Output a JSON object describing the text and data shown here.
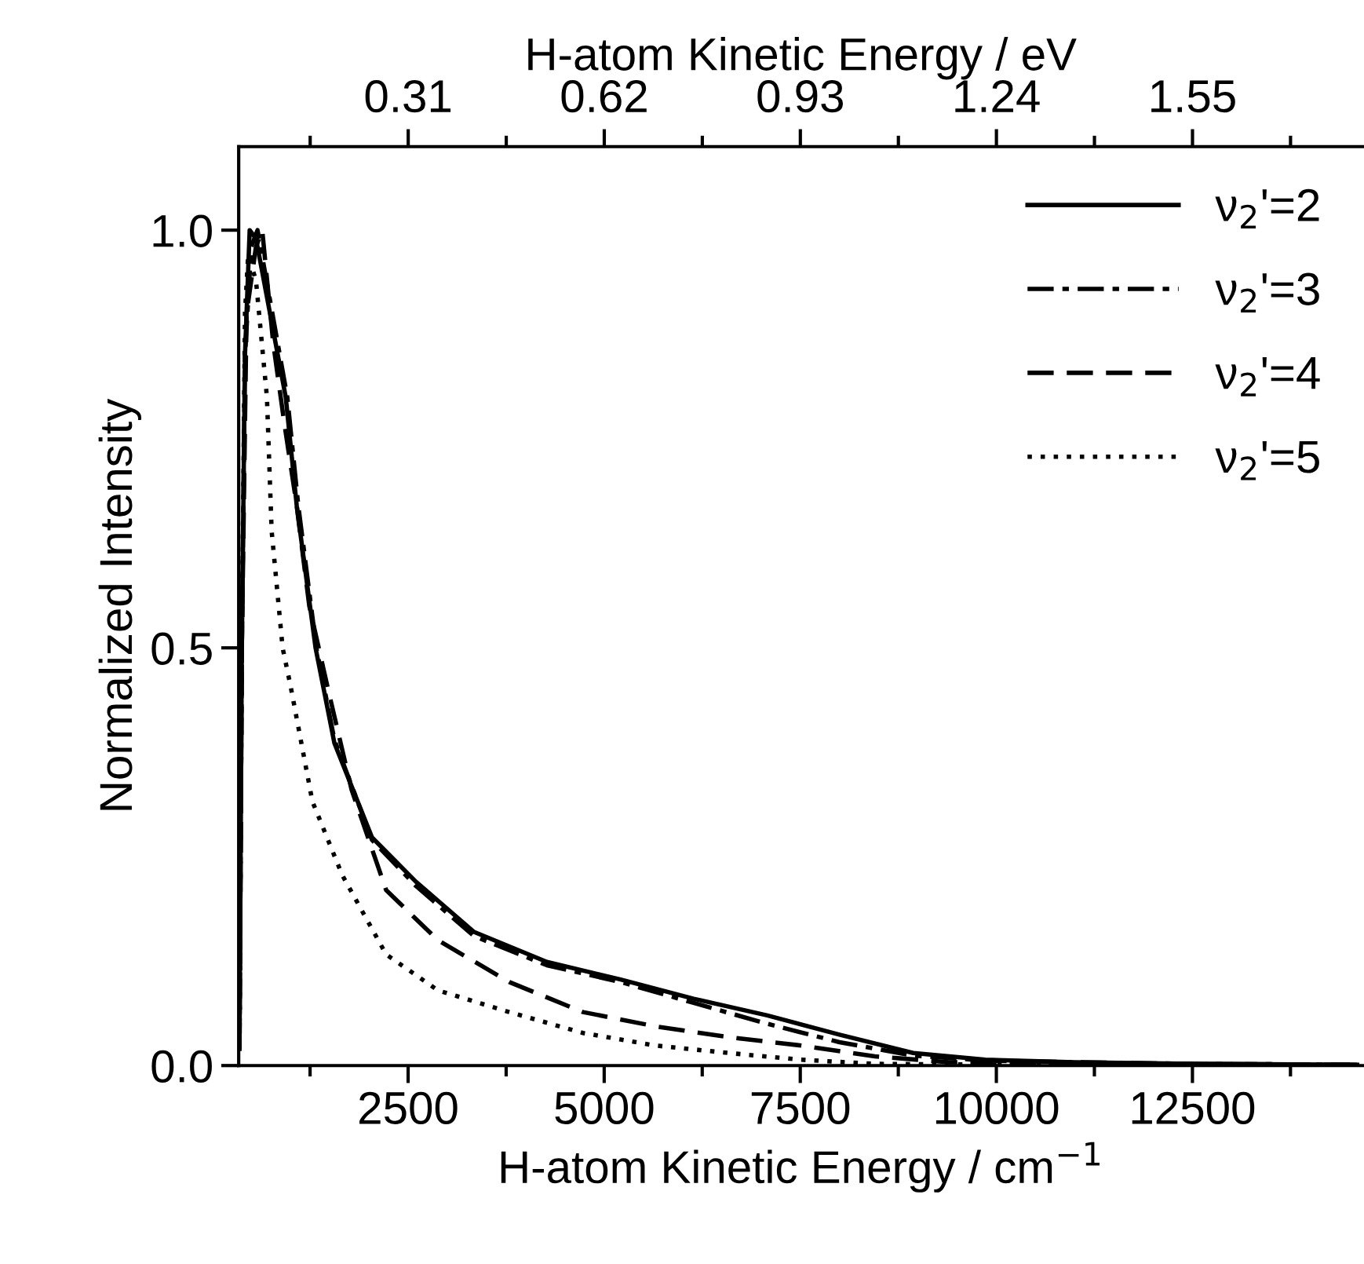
{
  "chart_data": {
    "type": "line",
    "xlabel": "H-atom Kinetic Energy / cm$^{−1}$",
    "x2label": "H-atom Kinetic Energy / eV",
    "ylabel": "Normalized Intensity",
    "xlim": [
      340,
      14670
    ],
    "xticks": [
      2500,
      5000,
      7500,
      10000,
      12500
    ],
    "x2lim": [
      0.042,
      1.819
    ],
    "x2ticks": [
      0.31,
      0.62,
      0.93,
      1.24,
      1.55
    ],
    "ylim": [
      0,
      1.1
    ],
    "yticks": [
      {
        "value": 0,
        "label": "0.0"
      },
      {
        "value": 0.5,
        "label": "0.5"
      },
      {
        "value": 1,
        "label": "1.0"
      }
    ],
    "grid": false,
    "legend": "top right",
    "marker": "none",
    "series": [
      {
        "name": "ν$_{2}$'=2",
        "color": "#000000",
        "line_style": "solid",
        "x": [
          350,
          380,
          420,
          480,
          560,
          940,
          1080,
          1320,
          1560,
          2040,
          2600,
          3340,
          4270,
          5210,
          6140,
          7080,
          8000,
          8940,
          9860,
          11000,
          12500,
          14600
        ],
        "values": [
          0.02,
          0.5,
          0.85,
          1.0,
          0.99,
          0.8,
          0.67,
          0.5,
          0.386,
          0.273,
          0.22,
          0.16,
          0.124,
          0.103,
          0.08,
          0.06,
          0.037,
          0.015,
          0.007,
          0.004,
          0.002,
          0.001
        ]
      },
      {
        "name": "ν$_{2}$'=3",
        "color": "#000000",
        "line_style": "dashdot",
        "x": [
          350,
          380,
          420,
          500,
          580,
          960,
          1100,
          1330,
          1560,
          2040,
          2600,
          3340,
          4270,
          5210,
          6140,
          7080,
          8000,
          8940,
          9860,
          11000,
          12500,
          14600
        ],
        "values": [
          0.02,
          0.5,
          0.85,
          0.98,
          1.0,
          0.8,
          0.67,
          0.5,
          0.39,
          0.27,
          0.215,
          0.155,
          0.12,
          0.1,
          0.075,
          0.05,
          0.028,
          0.012,
          0.006,
          0.004,
          0.002,
          0.001
        ]
      },
      {
        "name": "ν$_{2}$'=4",
        "color": "#000000",
        "line_style": "dashed",
        "x": [
          350,
          380,
          440,
          560,
          640,
          780,
          920,
          1080,
          1240,
          1480,
          1780,
          2220,
          2880,
          3790,
          4730,
          5650,
          6590,
          7510,
          8450,
          9400,
          11000,
          12500,
          14600
        ],
        "values": [
          0.02,
          0.5,
          0.9,
          0.98,
          1.0,
          0.865,
          0.77,
          0.67,
          0.55,
          0.45,
          0.33,
          0.21,
          0.15,
          0.1,
          0.064,
          0.047,
          0.034,
          0.024,
          0.011,
          0.004,
          0.003,
          0.002,
          0.001
        ]
      },
      {
        "name": "ν$_{2}$'=5",
        "color": "#000000",
        "line_style": "dotted",
        "x": [
          350,
          380,
          420,
          460,
          560,
          700,
          760,
          900,
          1000,
          1280,
          1660,
          2220,
          2880,
          3790,
          4730,
          5650,
          6590,
          7510,
          8450,
          10000,
          12500,
          14600
        ],
        "values": [
          0.02,
          0.5,
          0.9,
          0.97,
          0.94,
          0.8,
          0.64,
          0.5,
          0.455,
          0.316,
          0.228,
          0.133,
          0.09,
          0.064,
          0.039,
          0.024,
          0.015,
          0.007,
          0.002,
          0.001,
          0.001,
          0.0
        ]
      }
    ]
  }
}
